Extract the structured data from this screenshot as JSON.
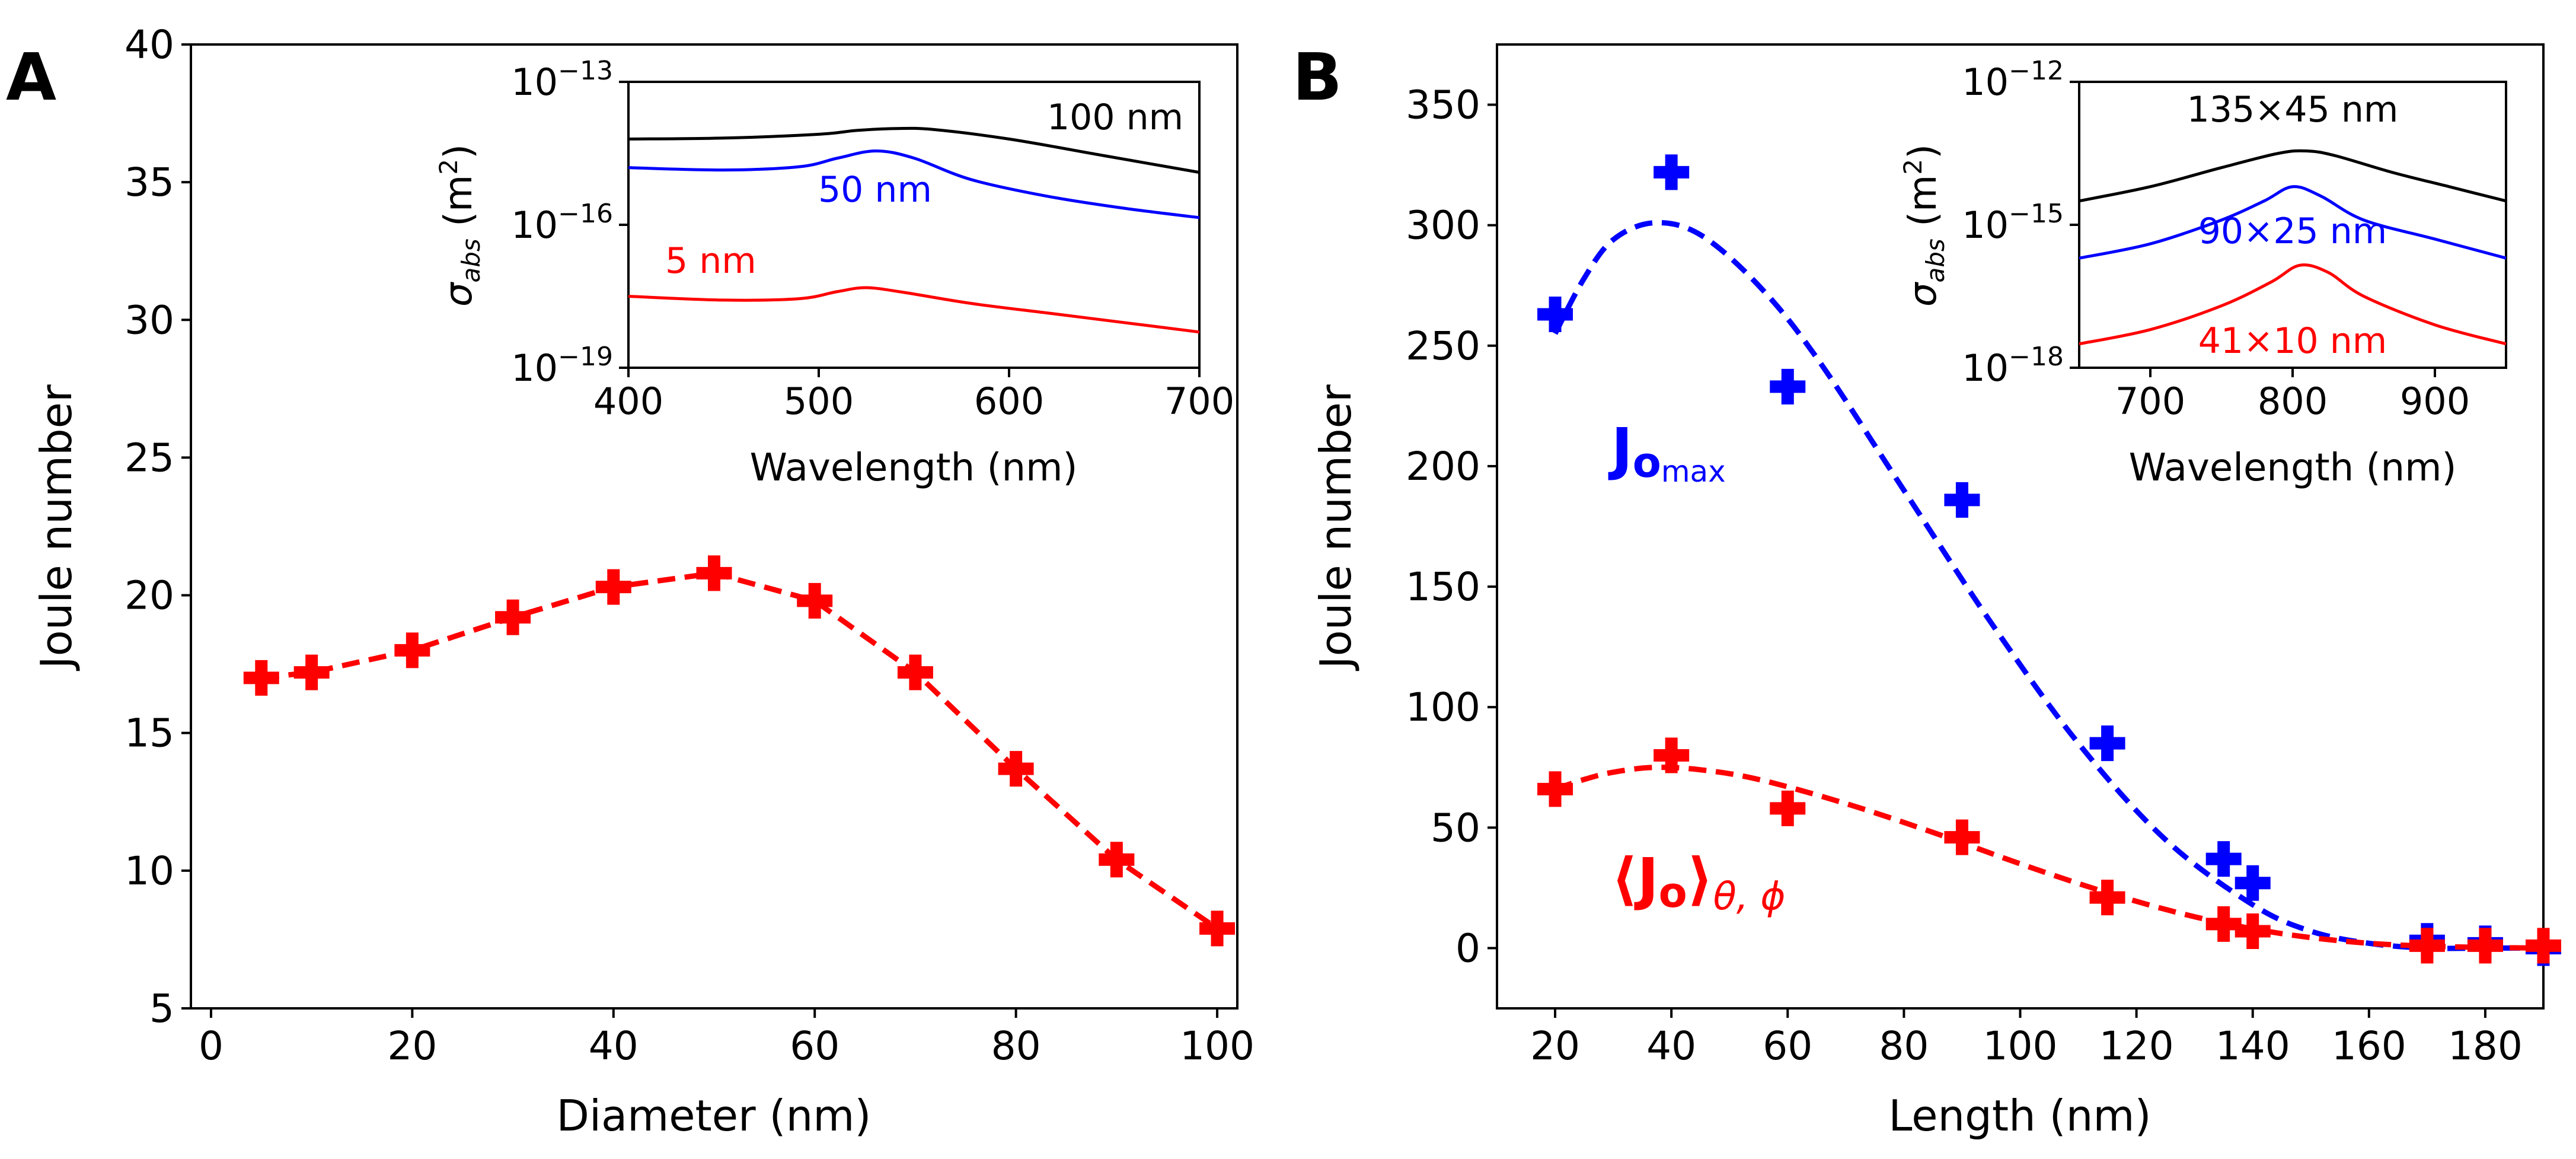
{
  "panels": {
    "A": {
      "label": "A"
    },
    "B": {
      "label": "B"
    }
  },
  "chart_data": [
    {
      "id": "A_main",
      "type": "scatter",
      "title": "",
      "xlabel": "Diameter (nm)",
      "ylabel": "Joule number",
      "xlim": [
        -2,
        102
      ],
      "ylim": [
        5,
        40
      ],
      "xticks": [
        "0",
        "20",
        "40",
        "60",
        "80",
        "100"
      ],
      "yticks": [
        "5",
        "10",
        "15",
        "20",
        "25",
        "30",
        "35",
        "40"
      ],
      "series": [
        {
          "name": "Joule number",
          "color": "#ff0000",
          "marker": "plus",
          "line": "dashed",
          "x": [
            5,
            10,
            20,
            30,
            40,
            50,
            60,
            70,
            80,
            90,
            100
          ],
          "y": [
            17.0,
            17.2,
            18.0,
            19.2,
            20.3,
            20.8,
            19.8,
            17.2,
            13.7,
            10.4,
            7.9
          ]
        }
      ]
    },
    {
      "id": "A_inset",
      "type": "line",
      "xlabel": "Wavelength (nm)",
      "ylabel": "σabs (m2)",
      "yscale": "log",
      "xlim": [
        400,
        700
      ],
      "ylim_exp": [
        -19,
        -13
      ],
      "xticks": [
        "400",
        "500",
        "600",
        "700"
      ],
      "yticks": [
        {
          "base": "10",
          "exp": "−13"
        },
        {
          "base": "10",
          "exp": "−16"
        },
        {
          "base": "10",
          "exp": "−19"
        }
      ],
      "series": [
        {
          "name": "100 nm",
          "color": "#000000",
          "x": [
            400,
            450,
            500,
            520,
            540,
            560,
            600,
            650,
            700
          ],
          "log10y": [
            -14.2,
            -14.18,
            -14.1,
            -14.02,
            -13.98,
            -14.0,
            -14.2,
            -14.55,
            -14.9
          ]
        },
        {
          "name": "50 nm",
          "color": "#0000ff",
          "x": [
            400,
            450,
            490,
            510,
            530,
            550,
            580,
            620,
            660,
            700
          ],
          "log10y": [
            -14.8,
            -14.85,
            -14.78,
            -14.6,
            -14.45,
            -14.6,
            -15.05,
            -15.4,
            -15.65,
            -15.85
          ]
        },
        {
          "name": "5 nm",
          "color": "#ff0000",
          "x": [
            400,
            450,
            490,
            510,
            525,
            545,
            580,
            620,
            660,
            700
          ],
          "log10y": [
            -17.5,
            -17.58,
            -17.55,
            -17.4,
            -17.32,
            -17.42,
            -17.65,
            -17.85,
            -18.05,
            -18.25
          ]
        }
      ]
    },
    {
      "id": "B_main",
      "type": "scatter",
      "xlabel": "Length (nm)",
      "ylabel": "Joule number",
      "xlim": [
        10,
        190
      ],
      "ylim": [
        -25,
        375
      ],
      "xticks": [
        "20",
        "40",
        "60",
        "80",
        "100",
        "120",
        "140",
        "160",
        "180"
      ],
      "yticks": [
        "0",
        "50",
        "100",
        "150",
        "200",
        "250",
        "300",
        "350"
      ],
      "series": [
        {
          "name": "Jomax",
          "label_main": "J",
          "label_sub1": "o",
          "label_sub2": "max",
          "color": "#0000ff",
          "marker": "plus",
          "x": [
            20,
            40,
            60,
            90,
            115,
            135,
            140,
            170,
            180,
            190
          ],
          "y": [
            263,
            322,
            233,
            186,
            85,
            37,
            27,
            3,
            2,
            0
          ],
          "fit_x": [
            20,
            25,
            30,
            37,
            45,
            55,
            65,
            80,
            95,
            110,
            125,
            140,
            150,
            160,
            170,
            180,
            190
          ],
          "fit_y": [
            255,
            278,
            294,
            301,
            296,
            275,
            245,
            190,
            135,
            85,
            45,
            18,
            7,
            2,
            0,
            0,
            0
          ]
        },
        {
          "name": "⟨Jo⟩θ,ϕ",
          "label_main": "⟨J",
          "label_sub1": "o",
          "label_close": "⟩",
          "label_sub2": "θ, ϕ",
          "color": "#ff0000",
          "marker": "plus",
          "x": [
            20,
            40,
            60,
            90,
            115,
            135,
            140,
            170,
            180,
            190
          ],
          "y": [
            66,
            80,
            58,
            46,
            21,
            10,
            7,
            1,
            1,
            1
          ],
          "fit_x": [
            20,
            25,
            30,
            37,
            45,
            55,
            70,
            85,
            100,
            115,
            130,
            145,
            160,
            175,
            190
          ],
          "fit_y": [
            66,
            70,
            73,
            75,
            74,
            70,
            60,
            48,
            35,
            23,
            13,
            6,
            2,
            0.5,
            0
          ]
        }
      ]
    },
    {
      "id": "B_inset",
      "type": "line",
      "xlabel": "Wavelength (nm)",
      "ylabel": "σabs (m2)",
      "yscale": "log",
      "xlim": [
        650,
        950
      ],
      "ylim_exp": [
        -18,
        -12
      ],
      "xticks": [
        "700",
        "800",
        "900"
      ],
      "yticks": [
        {
          "base": "10",
          "exp": "−12"
        },
        {
          "base": "10",
          "exp": "−15"
        },
        {
          "base": "10",
          "exp": "−18"
        }
      ],
      "series": [
        {
          "name": "135×45 nm",
          "color": "#000000",
          "x": [
            650,
            700,
            750,
            790,
            810,
            830,
            870,
            910,
            950
          ],
          "log10y": [
            -14.5,
            -14.2,
            -13.8,
            -13.5,
            -13.45,
            -13.55,
            -13.9,
            -14.2,
            -14.5
          ]
        },
        {
          "name": "90×25 nm",
          "color": "#0000ff",
          "x": [
            650,
            700,
            750,
            780,
            800,
            820,
            850,
            900,
            950
          ],
          "log10y": [
            -15.7,
            -15.4,
            -14.9,
            -14.5,
            -14.2,
            -14.4,
            -14.9,
            -15.3,
            -15.7
          ]
        },
        {
          "name": "41×10 nm",
          "color": "#ff0000",
          "x": [
            650,
            700,
            750,
            785,
            805,
            825,
            850,
            900,
            950
          ],
          "log10y": [
            -17.5,
            -17.2,
            -16.7,
            -16.2,
            -15.85,
            -16.0,
            -16.5,
            -17.1,
            -17.5
          ]
        }
      ]
    }
  ]
}
